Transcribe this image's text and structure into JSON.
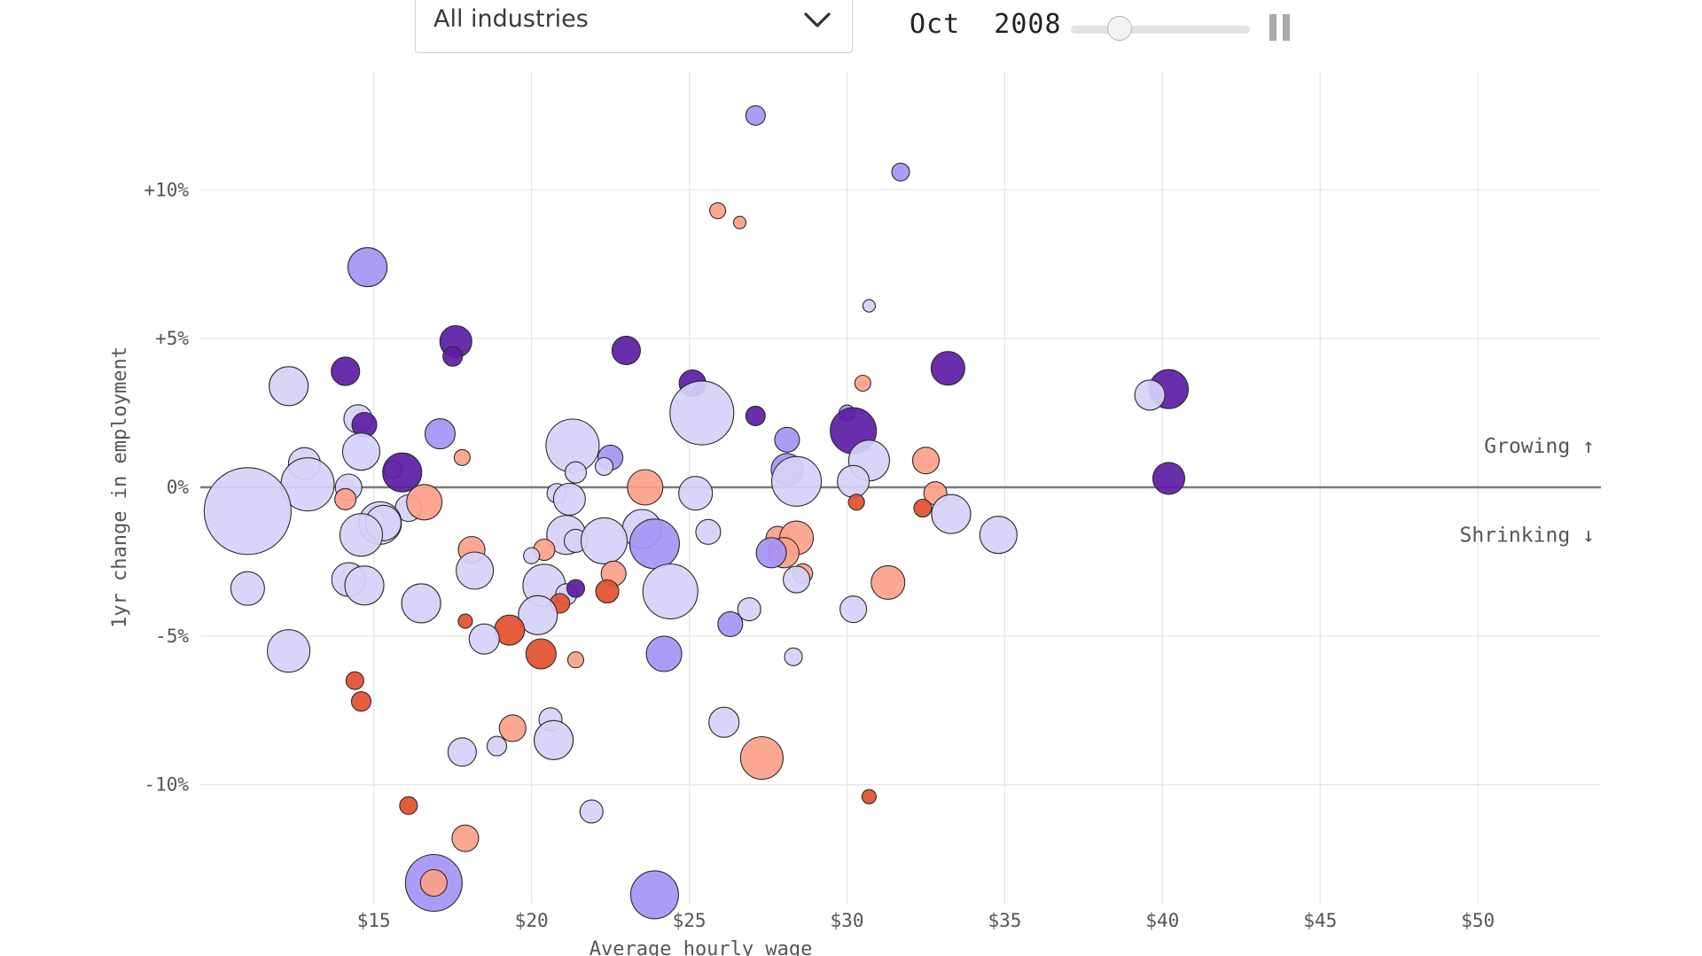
{
  "controls": {
    "industry_select": {
      "selected": "All industries"
    },
    "date_label": "Oct  2008",
    "slider_position": 0.27,
    "pause_icon": "pause-icon",
    "chevron_icon": "chevron-down-icon"
  },
  "colors": {
    "light_purple": "#d6d2f7",
    "mid_purple": "#a695f5",
    "dark_purple": "#5e1ea5",
    "light_orange": "#fca08a",
    "dark_orange": "#e2522e",
    "zero_line": "#7a7a7a",
    "grid": "#e6e6e6"
  },
  "chart_data": {
    "type": "scatter",
    "xlabel": "Average hourly wage",
    "ylabel": "1yr change in employment",
    "xlim": [
      9.5,
      53.9
    ],
    "ylim": [
      -14,
      14
    ],
    "x_ticks": [
      15,
      20,
      25,
      30,
      35,
      40,
      45,
      50
    ],
    "x_tick_labels": [
      "$15",
      "$20",
      "$25",
      "$30",
      "$35",
      "$40",
      "$45",
      "$50"
    ],
    "y_ticks": [
      10,
      5,
      0,
      -5,
      -10
    ],
    "y_tick_labels": [
      "+10%",
      "+5%",
      "0%",
      "-5%",
      "-10%"
    ],
    "grid": true,
    "annotations": [
      {
        "text": "Growing ↑",
        "x": 53.7,
        "y": 1.4
      },
      {
        "text": "Shrinking ↓",
        "x": 53.7,
        "y": -1.6
      }
    ],
    "points": [
      {
        "x": 27.1,
        "y": 12.5,
        "r": 11,
        "c": "mp"
      },
      {
        "x": 31.7,
        "y": 10.6,
        "r": 10,
        "c": "mp"
      },
      {
        "x": 25.9,
        "y": 9.3,
        "r": 9,
        "c": "lo"
      },
      {
        "x": 26.6,
        "y": 8.9,
        "r": 7,
        "c": "lo"
      },
      {
        "x": 14.8,
        "y": 7.4,
        "r": 22,
        "c": "mp"
      },
      {
        "x": 30.7,
        "y": 6.1,
        "r": 7,
        "c": "lp"
      },
      {
        "x": 17.6,
        "y": 4.9,
        "r": 18,
        "c": "dp"
      },
      {
        "x": 17.5,
        "y": 4.4,
        "r": 11,
        "c": "dp"
      },
      {
        "x": 23.0,
        "y": 4.6,
        "r": 16,
        "c": "dp"
      },
      {
        "x": 14.1,
        "y": 3.9,
        "r": 16,
        "c": "dp"
      },
      {
        "x": 33.2,
        "y": 4.0,
        "r": 19,
        "c": "dp"
      },
      {
        "x": 12.3,
        "y": 3.4,
        "r": 22,
        "c": "lp"
      },
      {
        "x": 25.1,
        "y": 3.5,
        "r": 15,
        "c": "dp"
      },
      {
        "x": 30.5,
        "y": 3.5,
        "r": 9,
        "c": "lo"
      },
      {
        "x": 40.2,
        "y": 3.3,
        "r": 22,
        "c": "dp"
      },
      {
        "x": 39.6,
        "y": 3.1,
        "r": 17,
        "c": "lp"
      },
      {
        "x": 25.4,
        "y": 2.5,
        "r": 36,
        "c": "lp"
      },
      {
        "x": 27.1,
        "y": 2.4,
        "r": 11,
        "c": "dp"
      },
      {
        "x": 14.5,
        "y": 2.3,
        "r": 16,
        "c": "lp"
      },
      {
        "x": 14.7,
        "y": 2.1,
        "r": 14,
        "c": "dp"
      },
      {
        "x": 30.0,
        "y": 2.5,
        "r": 9,
        "c": "mp"
      },
      {
        "x": 30.2,
        "y": 1.9,
        "r": 26,
        "c": "dp"
      },
      {
        "x": 17.1,
        "y": 1.8,
        "r": 17,
        "c": "mp"
      },
      {
        "x": 28.1,
        "y": 1.6,
        "r": 14,
        "c": "mp"
      },
      {
        "x": 14.6,
        "y": 1.2,
        "r": 21,
        "c": "lp"
      },
      {
        "x": 21.3,
        "y": 1.4,
        "r": 30,
        "c": "lp"
      },
      {
        "x": 22.5,
        "y": 1.0,
        "r": 14,
        "c": "mp"
      },
      {
        "x": 17.8,
        "y": 1.0,
        "r": 9,
        "c": "lo"
      },
      {
        "x": 30.7,
        "y": 0.9,
        "r": 23,
        "c": "lp"
      },
      {
        "x": 32.5,
        "y": 0.9,
        "r": 15,
        "c": "lo"
      },
      {
        "x": 12.8,
        "y": 0.8,
        "r": 18,
        "c": "lp"
      },
      {
        "x": 22.3,
        "y": 0.7,
        "r": 10,
        "c": "lp"
      },
      {
        "x": 15.6,
        "y": 0.6,
        "r": 10,
        "c": "lp"
      },
      {
        "x": 15.9,
        "y": 0.5,
        "r": 22,
        "c": "dp"
      },
      {
        "x": 21.4,
        "y": 0.5,
        "r": 12,
        "c": "lp"
      },
      {
        "x": 28.1,
        "y": 0.6,
        "r": 18,
        "c": "mp"
      },
      {
        "x": 28.4,
        "y": 0.2,
        "r": 28,
        "c": "lp"
      },
      {
        "x": 30.2,
        "y": 0.2,
        "r": 18,
        "c": "lp"
      },
      {
        "x": 40.2,
        "y": 0.3,
        "r": 18,
        "c": "dp"
      },
      {
        "x": 12.9,
        "y": 0.1,
        "r": 30,
        "c": "lp"
      },
      {
        "x": 14.2,
        "y": 0.0,
        "r": 15,
        "c": "lp"
      },
      {
        "x": 23.6,
        "y": 0.0,
        "r": 20,
        "c": "lo"
      },
      {
        "x": 20.8,
        "y": -0.2,
        "r": 11,
        "c": "lp"
      },
      {
        "x": 32.8,
        "y": -0.2,
        "r": 13,
        "c": "lo"
      },
      {
        "x": 25.2,
        "y": -0.2,
        "r": 19,
        "c": "lp"
      },
      {
        "x": 14.1,
        "y": -0.4,
        "r": 12,
        "c": "lo"
      },
      {
        "x": 21.2,
        "y": -0.4,
        "r": 18,
        "c": "lp"
      },
      {
        "x": 11.0,
        "y": -0.8,
        "r": 49,
        "c": "lp"
      },
      {
        "x": 16.1,
        "y": -0.7,
        "r": 15,
        "c": "lp"
      },
      {
        "x": 16.6,
        "y": -0.5,
        "r": 20,
        "c": "lo"
      },
      {
        "x": 30.3,
        "y": -0.5,
        "r": 9,
        "c": "do"
      },
      {
        "x": 32.4,
        "y": -0.7,
        "r": 10,
        "c": "do"
      },
      {
        "x": 33.3,
        "y": -0.9,
        "r": 22,
        "c": "lp"
      },
      {
        "x": 15.2,
        "y": -1.2,
        "r": 24,
        "c": "lp"
      },
      {
        "x": 15.3,
        "y": -1.2,
        "r": 20,
        "c": "lp"
      },
      {
        "x": 14.6,
        "y": -1.6,
        "r": 24,
        "c": "lp"
      },
      {
        "x": 25.6,
        "y": -1.5,
        "r": 14,
        "c": "lp"
      },
      {
        "x": 23.5,
        "y": -1.4,
        "r": 22,
        "c": "lp"
      },
      {
        "x": 23.9,
        "y": -1.9,
        "r": 28,
        "c": "mp"
      },
      {
        "x": 21.1,
        "y": -1.6,
        "r": 22,
        "c": "lp"
      },
      {
        "x": 21.4,
        "y": -1.8,
        "r": 13,
        "c": "lp"
      },
      {
        "x": 22.3,
        "y": -1.8,
        "r": 26,
        "c": "lp"
      },
      {
        "x": 27.8,
        "y": -1.7,
        "r": 13,
        "c": "lo"
      },
      {
        "x": 28.4,
        "y": -1.7,
        "r": 19,
        "c": "lo"
      },
      {
        "x": 34.8,
        "y": -1.6,
        "r": 21,
        "c": "lp"
      },
      {
        "x": 18.1,
        "y": -2.1,
        "r": 15,
        "c": "lo"
      },
      {
        "x": 20.4,
        "y": -2.1,
        "r": 12,
        "c": "lo"
      },
      {
        "x": 20.0,
        "y": -2.3,
        "r": 9,
        "c": "lp"
      },
      {
        "x": 28.0,
        "y": -2.2,
        "r": 17,
        "c": "lo"
      },
      {
        "x": 27.6,
        "y": -2.2,
        "r": 17,
        "c": "mp"
      },
      {
        "x": 18.2,
        "y": -2.8,
        "r": 21,
        "c": "lp"
      },
      {
        "x": 14.2,
        "y": -3.1,
        "r": 19,
        "c": "lp"
      },
      {
        "x": 22.6,
        "y": -2.9,
        "r": 14,
        "c": "lo"
      },
      {
        "x": 28.6,
        "y": -2.9,
        "r": 11,
        "c": "lo"
      },
      {
        "x": 28.4,
        "y": -3.1,
        "r": 15,
        "c": "lp"
      },
      {
        "x": 31.3,
        "y": -3.2,
        "r": 19,
        "c": "lo"
      },
      {
        "x": 14.7,
        "y": -3.3,
        "r": 22,
        "c": "lp"
      },
      {
        "x": 20.4,
        "y": -3.3,
        "r": 24,
        "c": "lp"
      },
      {
        "x": 21.1,
        "y": -3.6,
        "r": 12,
        "c": "lp"
      },
      {
        "x": 22.4,
        "y": -3.5,
        "r": 13,
        "c": "do"
      },
      {
        "x": 21.4,
        "y": -3.4,
        "r": 10,
        "c": "dp"
      },
      {
        "x": 24.4,
        "y": -3.5,
        "r": 31,
        "c": "lp"
      },
      {
        "x": 11.0,
        "y": -3.4,
        "r": 19,
        "c": "lp"
      },
      {
        "x": 16.5,
        "y": -3.9,
        "r": 22,
        "c": "lp"
      },
      {
        "x": 20.9,
        "y": -3.9,
        "r": 11,
        "c": "do"
      },
      {
        "x": 20.2,
        "y": -4.3,
        "r": 22,
        "c": "lp"
      },
      {
        "x": 26.9,
        "y": -4.1,
        "r": 13,
        "c": "lp"
      },
      {
        "x": 30.2,
        "y": -4.1,
        "r": 15,
        "c": "lp"
      },
      {
        "x": 17.9,
        "y": -4.5,
        "r": 8,
        "c": "do"
      },
      {
        "x": 19.3,
        "y": -4.8,
        "r": 17,
        "c": "do"
      },
      {
        "x": 26.3,
        "y": -4.6,
        "r": 14,
        "c": "mp"
      },
      {
        "x": 18.5,
        "y": -5.1,
        "r": 17,
        "c": "lp"
      },
      {
        "x": 12.3,
        "y": -5.5,
        "r": 24,
        "c": "lp"
      },
      {
        "x": 20.3,
        "y": -5.6,
        "r": 17,
        "c": "do"
      },
      {
        "x": 21.4,
        "y": -5.8,
        "r": 9,
        "c": "lo"
      },
      {
        "x": 24.2,
        "y": -5.6,
        "r": 20,
        "c": "mp"
      },
      {
        "x": 28.3,
        "y": -5.7,
        "r": 10,
        "c": "lp"
      },
      {
        "x": 14.4,
        "y": -6.5,
        "r": 10,
        "c": "do"
      },
      {
        "x": 14.6,
        "y": -7.2,
        "r": 11,
        "c": "do"
      },
      {
        "x": 26.1,
        "y": -7.9,
        "r": 17,
        "c": "lp"
      },
      {
        "x": 20.6,
        "y": -7.8,
        "r": 13,
        "c": "lp"
      },
      {
        "x": 19.4,
        "y": -8.1,
        "r": 15,
        "c": "lo"
      },
      {
        "x": 20.7,
        "y": -8.5,
        "r": 22,
        "c": "lp"
      },
      {
        "x": 18.9,
        "y": -8.7,
        "r": 11,
        "c": "lp"
      },
      {
        "x": 17.8,
        "y": -8.9,
        "r": 16,
        "c": "lp"
      },
      {
        "x": 27.3,
        "y": -9.1,
        "r": 24,
        "c": "lo"
      },
      {
        "x": 30.7,
        "y": -10.4,
        "r": 8,
        "c": "do"
      },
      {
        "x": 16.1,
        "y": -10.7,
        "r": 10,
        "c": "do"
      },
      {
        "x": 21.9,
        "y": -10.9,
        "r": 13,
        "c": "lp"
      },
      {
        "x": 17.9,
        "y": -11.8,
        "r": 15,
        "c": "lo"
      },
      {
        "x": 16.9,
        "y": -13.3,
        "r": 32,
        "c": "mp"
      },
      {
        "x": 16.9,
        "y": -13.3,
        "r": 15,
        "c": "lo"
      },
      {
        "x": 23.9,
        "y": -13.7,
        "r": 27,
        "c": "mp"
      }
    ]
  }
}
